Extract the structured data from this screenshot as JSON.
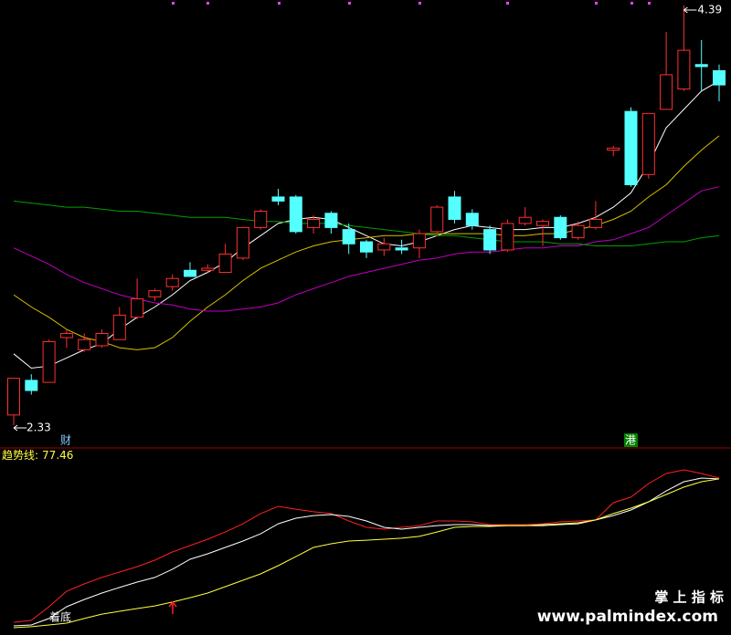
{
  "chart_data": [
    {
      "type": "candlestick",
      "ylim": [
        2.33,
        4.39
      ],
      "up_color": "#ff3030",
      "down_color": "#54ffff",
      "open": [
        2.38,
        2.55,
        2.54,
        2.76,
        2.7,
        2.72,
        2.75,
        2.86,
        2.96,
        3.01,
        3.09,
        3.09,
        3.08,
        3.15,
        3.3,
        3.45,
        3.45,
        3.3,
        3.37,
        3.29,
        3.23,
        3.19,
        3.2,
        3.2,
        3.28,
        3.45,
        3.37,
        3.29,
        3.19,
        3.32,
        3.31,
        3.35,
        3.25,
        3.3,
        3.68,
        3.87,
        3.56,
        3.88,
        3.98,
        4.1,
        4.07
      ],
      "high": [
        2.56,
        2.58,
        2.75,
        2.8,
        2.78,
        2.8,
        2.91,
        3.05,
        3.0,
        3.07,
        3.13,
        3.12,
        3.22,
        3.3,
        3.39,
        3.49,
        3.46,
        3.36,
        3.38,
        3.32,
        3.24,
        3.25,
        3.24,
        3.29,
        3.41,
        3.48,
        3.39,
        3.31,
        3.34,
        3.4,
        3.34,
        3.36,
        3.33,
        3.43,
        3.7,
        3.89,
        3.86,
        4.26,
        4.39,
        4.22,
        4.1
      ],
      "low": [
        2.33,
        2.48,
        2.54,
        2.71,
        2.69,
        2.71,
        2.75,
        2.85,
        2.94,
        2.99,
        3.06,
        3.08,
        3.08,
        3.14,
        3.29,
        3.41,
        3.27,
        3.27,
        3.27,
        3.17,
        3.15,
        3.16,
        3.17,
        3.15,
        3.27,
        3.32,
        3.29,
        3.17,
        3.18,
        3.31,
        3.21,
        3.24,
        3.24,
        3.29,
        3.65,
        3.5,
        3.54,
        3.88,
        3.97,
        3.97,
        3.92
      ],
      "close": [
        2.56,
        2.5,
        2.74,
        2.78,
        2.75,
        2.78,
        2.87,
        2.95,
        2.99,
        3.05,
        3.06,
        3.1,
        3.17,
        3.3,
        3.38,
        3.43,
        3.28,
        3.34,
        3.3,
        3.22,
        3.18,
        3.22,
        3.19,
        3.27,
        3.4,
        3.34,
        3.31,
        3.19,
        3.32,
        3.35,
        3.33,
        3.25,
        3.31,
        3.34,
        3.69,
        3.51,
        3.86,
        4.05,
        4.17,
        4.09,
        4.0
      ],
      "series": [
        {
          "color": "#ffffff",
          "values": [
            2.68,
            2.61,
            2.62,
            2.66,
            2.7,
            2.73,
            2.8,
            2.86,
            2.91,
            2.97,
            3.04,
            3.08,
            3.13,
            3.2,
            3.26,
            3.32,
            3.34,
            3.35,
            3.34,
            3.3,
            3.26,
            3.22,
            3.21,
            3.23,
            3.26,
            3.29,
            3.31,
            3.3,
            3.29,
            3.29,
            3.3,
            3.3,
            3.32,
            3.35,
            3.4,
            3.47,
            3.61,
            3.79,
            3.88,
            3.97,
            4.02
          ]
        },
        {
          "color": "#d8c000",
          "values": [
            2.97,
            2.91,
            2.86,
            2.8,
            2.76,
            2.74,
            2.71,
            2.7,
            2.71,
            2.76,
            2.84,
            2.91,
            2.97,
            3.04,
            3.1,
            3.14,
            3.18,
            3.21,
            3.23,
            3.24,
            3.25,
            3.26,
            3.26,
            3.27,
            3.27,
            3.27,
            3.27,
            3.27,
            3.26,
            3.26,
            3.27,
            3.27,
            3.29,
            3.31,
            3.34,
            3.38,
            3.45,
            3.51,
            3.6,
            3.68,
            3.75
          ]
        },
        {
          "color": "#c000c0",
          "values": [
            3.2,
            3.16,
            3.12,
            3.07,
            3.03,
            3.0,
            2.97,
            2.95,
            2.93,
            2.92,
            2.9,
            2.89,
            2.89,
            2.9,
            2.91,
            2.93,
            2.97,
            3.0,
            3.03,
            3.06,
            3.08,
            3.1,
            3.12,
            3.14,
            3.15,
            3.17,
            3.18,
            3.18,
            3.19,
            3.2,
            3.2,
            3.21,
            3.21,
            3.23,
            3.24,
            3.27,
            3.3,
            3.36,
            3.42,
            3.48,
            3.5
          ]
        },
        {
          "color": "#00a000",
          "values": [
            3.43,
            3.42,
            3.41,
            3.4,
            3.4,
            3.39,
            3.38,
            3.38,
            3.37,
            3.36,
            3.35,
            3.35,
            3.35,
            3.34,
            3.33,
            3.33,
            3.32,
            3.32,
            3.32,
            3.31,
            3.3,
            3.29,
            3.28,
            3.27,
            3.26,
            3.26,
            3.25,
            3.24,
            3.23,
            3.23,
            3.23,
            3.22,
            3.22,
            3.21,
            3.21,
            3.21,
            3.22,
            3.23,
            3.23,
            3.25,
            3.26
          ]
        }
      ],
      "markers": [
        {
          "label": "财",
          "color": "#80c8ff"
        },
        {
          "label": "港",
          "color": "#ffffff"
        }
      ]
    },
    {
      "type": "line",
      "title": "趋势线:",
      "value": 77.46,
      "title_color": "#ffff40",
      "ylim": [
        0,
        100
      ],
      "annotation": "着底",
      "series": [
        {
          "color": "#ff2020",
          "values": [
            4.4,
            5.6,
            13.9,
            23.3,
            27.8,
            31.7,
            35,
            38.3,
            42.2,
            47.2,
            51.1,
            55,
            59.4,
            64.4,
            70.6,
            75,
            73.3,
            71.7,
            70.6,
            66.1,
            62.2,
            61.1,
            62.2,
            63.3,
            66.1,
            66.1,
            65.6,
            63.9,
            63.9,
            63.9,
            64.4,
            65.6,
            66.1,
            66.7,
            77.2,
            80.6,
            88.9,
            95,
            97.2,
            95,
            92.2
          ]
        },
        {
          "color": "#ffffff",
          "values": [
            2.2,
            2.8,
            6.7,
            13.9,
            18.3,
            22.2,
            25.6,
            28.9,
            31.7,
            36.7,
            42.8,
            46.1,
            50,
            53.9,
            58.3,
            64.4,
            67.8,
            69.4,
            70,
            68.9,
            66.1,
            62.2,
            61.1,
            62.2,
            63.3,
            63.9,
            63.9,
            63.3,
            63.3,
            63.3,
            63.3,
            63.9,
            64.4,
            66.7,
            69.4,
            72.8,
            77.8,
            84.4,
            90,
            92.2,
            91.7
          ]
        },
        {
          "color": "#ffff40",
          "values": [
            1.1,
            1.7,
            2.8,
            3.9,
            6.7,
            9.4,
            11.1,
            12.8,
            14.4,
            16.7,
            19.4,
            22.2,
            26.1,
            30,
            33.9,
            38.9,
            44.4,
            50,
            52.2,
            53.9,
            54.4,
            55,
            55.6,
            56.7,
            59.4,
            62.2,
            62.8,
            62.8,
            63.3,
            63.3,
            63.9,
            64.4,
            65,
            66.7,
            70.6,
            73.9,
            77.8,
            82.2,
            86.7,
            90,
            91.7
          ]
        }
      ]
    }
  ],
  "watermark": {
    "title": "掌 上 指 标",
    "url": "www.palmindex.com"
  }
}
